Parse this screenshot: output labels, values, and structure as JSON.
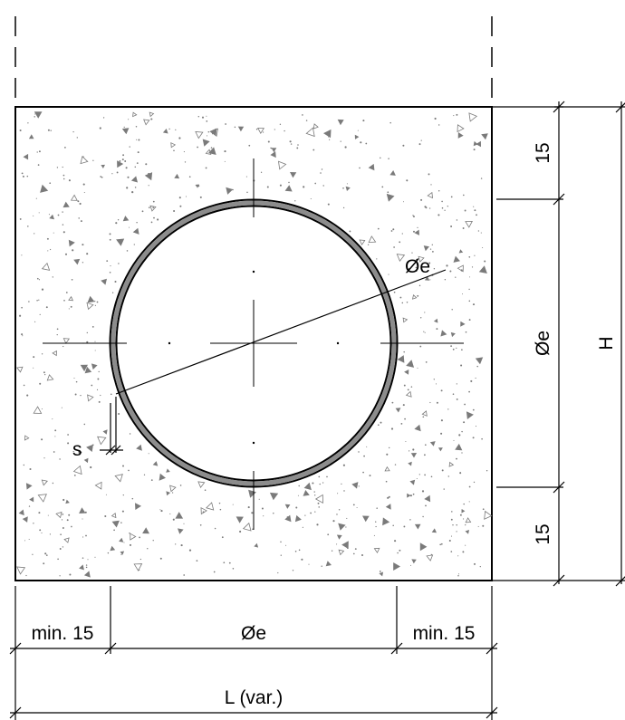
{
  "labels": {
    "diameter_diagonal": "Øe",
    "diameter_vertical": "Øe",
    "diameter_horizontal": "Øe",
    "wall_thickness": "s",
    "cover_top": "15",
    "cover_bottom": "15",
    "height": "H",
    "min_left": "min. 15",
    "min_right": "min. 15",
    "length": "L (var.)"
  },
  "colors": {
    "line": "#000000",
    "pipe_wall": "#8c8c8c",
    "concrete_speckle": "#7a7a7a",
    "background": "#ffffff"
  }
}
